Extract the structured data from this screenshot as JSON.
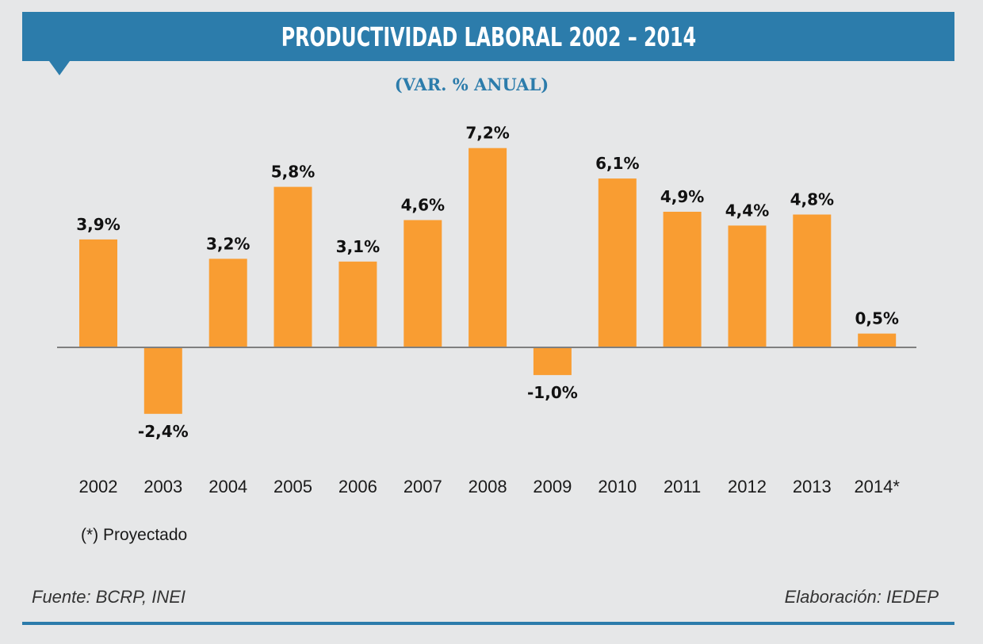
{
  "header": {
    "title": "PRODUCTIVIDAD LABORAL 2002 – 2014",
    "subtitle": "(VAR. % ANUAL)"
  },
  "colors": {
    "banner": "#2c7cab",
    "bar": "#f99d32",
    "background": "#e6e7e8",
    "axis": "#7f7f7f"
  },
  "chart_data": {
    "type": "bar",
    "title": "PRODUCTIVIDAD LABORAL 2002 – 2014",
    "subtitle": "(VAR. % ANUAL)",
    "xlabel": "",
    "ylabel": "",
    "grid": false,
    "categories": [
      "2002",
      "2003",
      "2004",
      "2005",
      "2006",
      "2007",
      "2008",
      "2009",
      "2010",
      "2011",
      "2012",
      "2013",
      "2014*"
    ],
    "values": [
      3.9,
      -2.4,
      3.2,
      5.8,
      3.1,
      4.6,
      7.2,
      -1.0,
      6.1,
      4.9,
      4.4,
      4.8,
      0.5
    ],
    "labels": [
      "3,9%",
      "-2,4%",
      "3,2%",
      "5,8%",
      "3,1%",
      "4,6%",
      "7,2%",
      "-1,0%",
      "6,1%",
      "4,9%",
      "4,4%",
      "4,8%",
      "0,5%"
    ],
    "ylim": [
      -2.4,
      7.2
    ]
  },
  "footer": {
    "note": "(*) Proyectado",
    "source": "Fuente: BCRP, INEI",
    "credit": "Elaboración: IEDEP"
  }
}
